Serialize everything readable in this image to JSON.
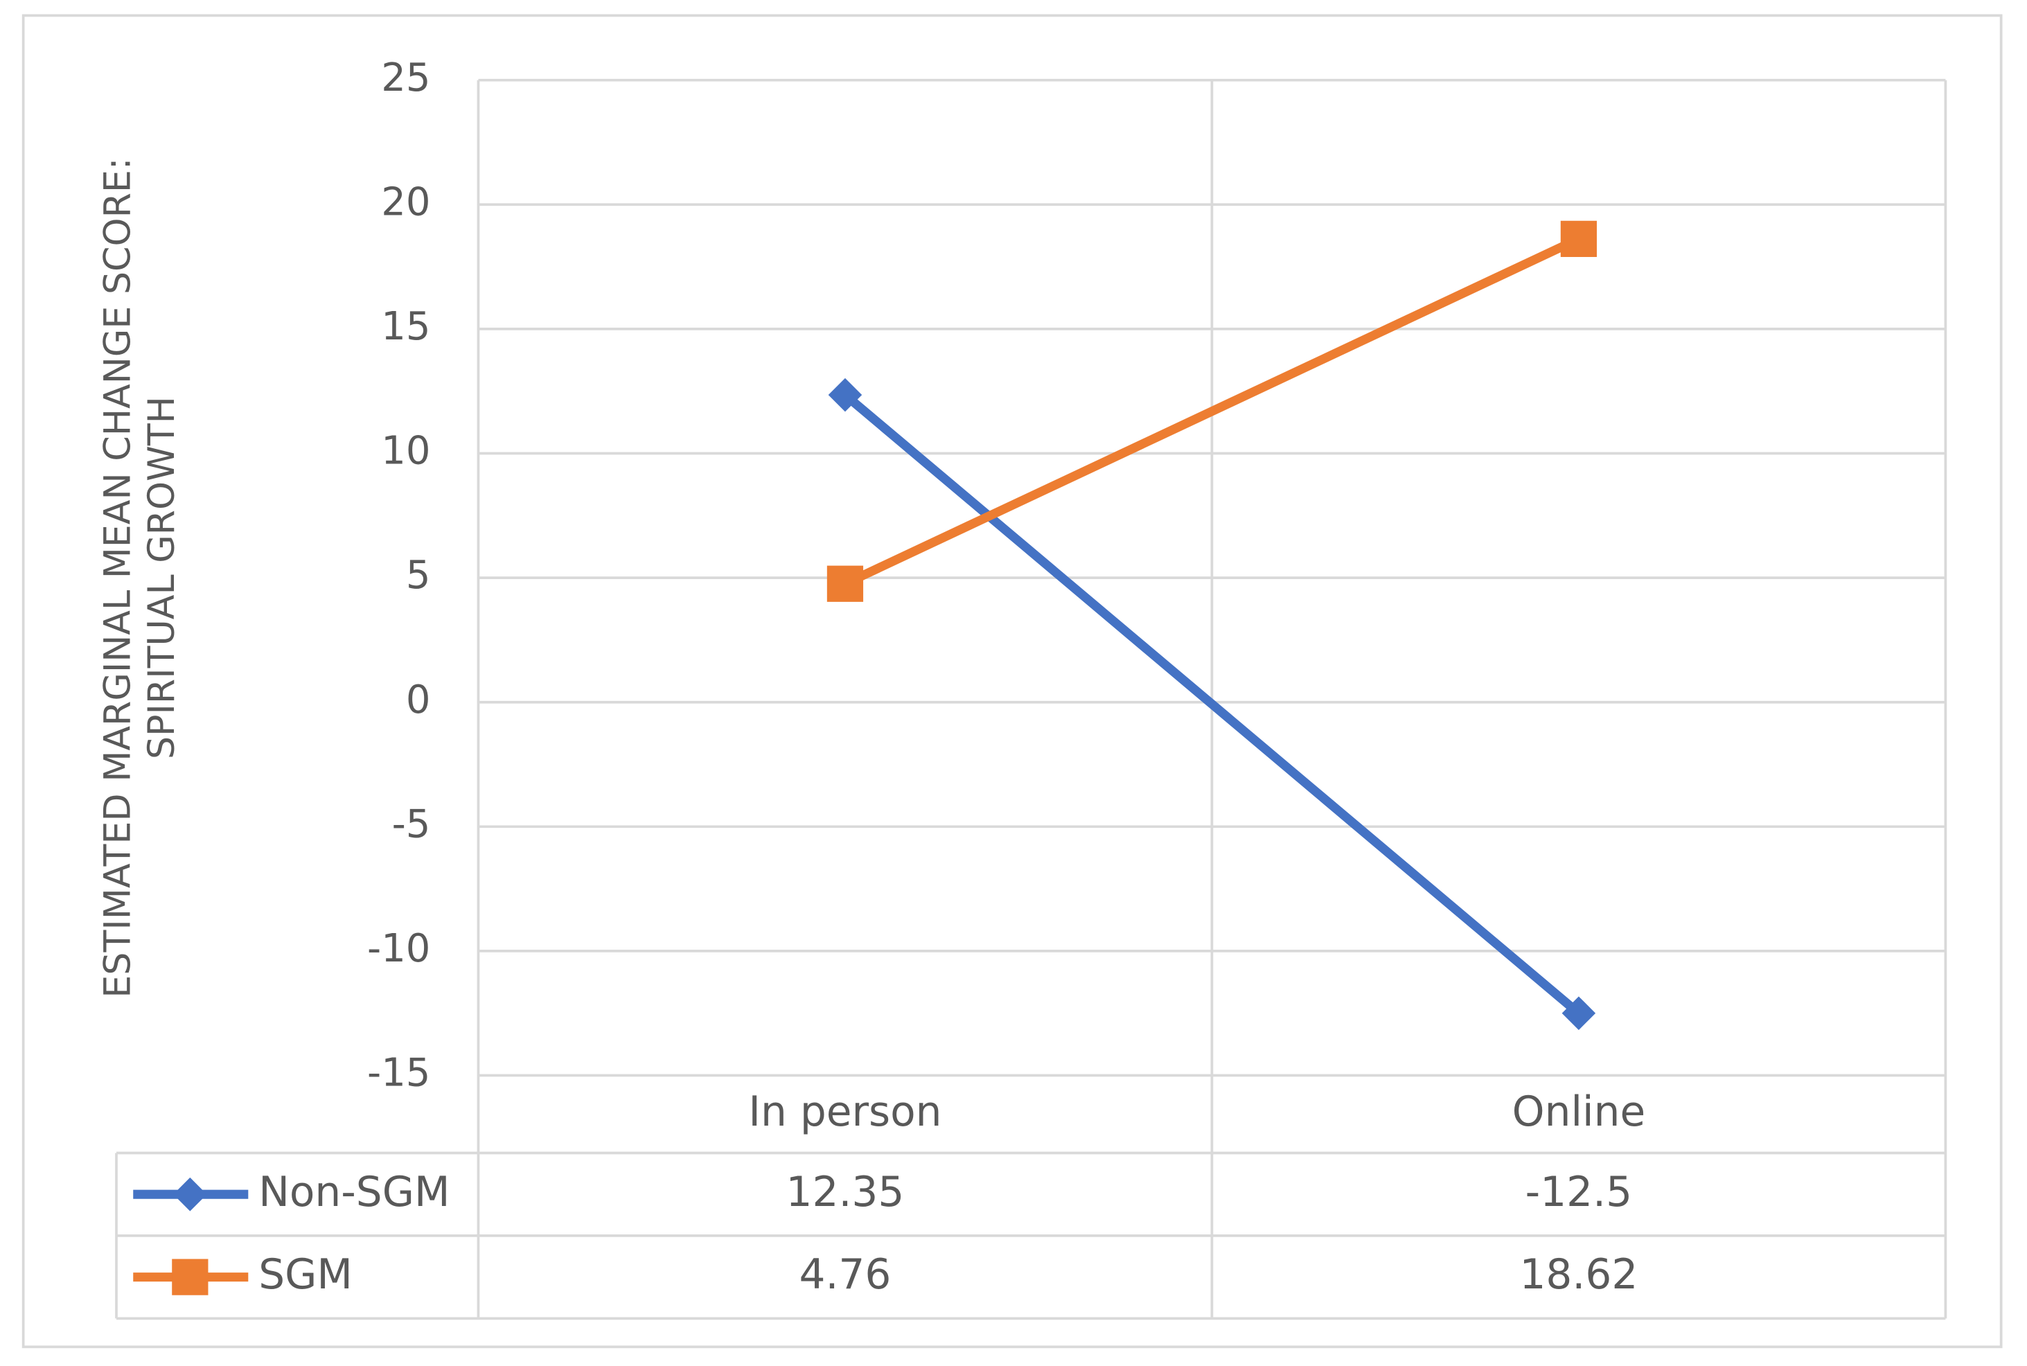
{
  "chart_data": {
    "type": "line",
    "y_axis_label": "ESTIMATED MARGINAL MEAN CHANGE SCORE: SPIRITUAL GROWTH",
    "categories": [
      "In person",
      "Online"
    ],
    "series": [
      {
        "name": "Non-SGM",
        "color": "#4472c4",
        "marker": "diamond",
        "values": [
          12.35,
          -12.5
        ]
      },
      {
        "name": "SGM",
        "color": "#ed7d31",
        "marker": "square",
        "values": [
          4.76,
          18.62
        ]
      }
    ],
    "ylim": [
      -15,
      25
    ],
    "yticks": [
      -15,
      -10,
      -5,
      0,
      5,
      10,
      15,
      20,
      25
    ],
    "grid": true,
    "data_table": true
  }
}
